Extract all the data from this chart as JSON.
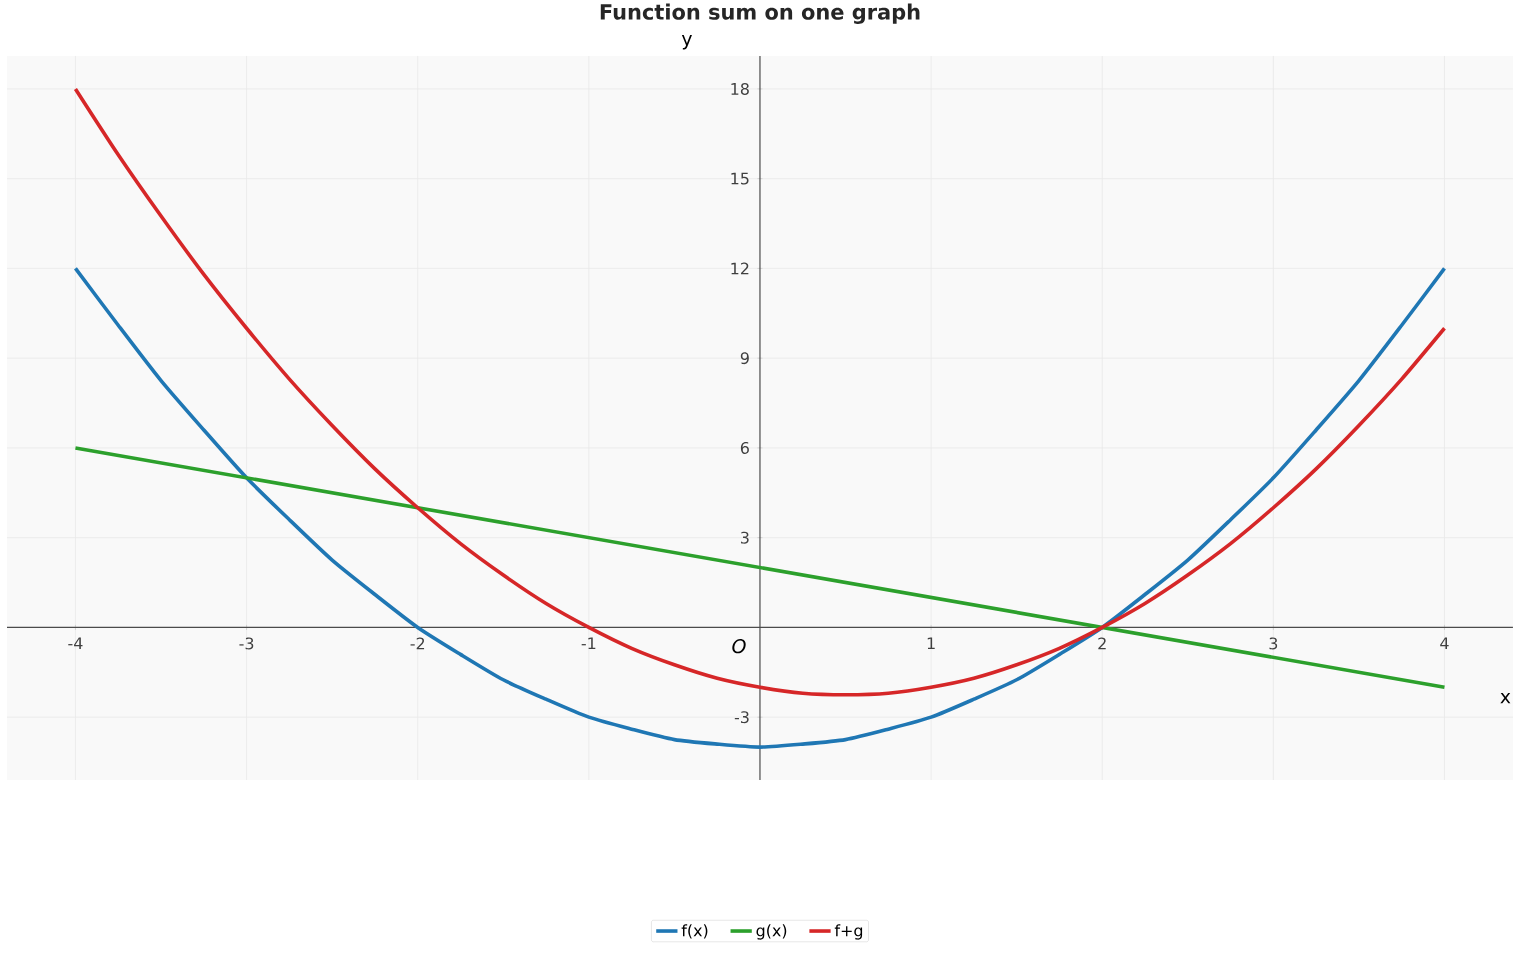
{
  "chart_data": {
    "type": "line",
    "title": "Function sum on one graph",
    "xlabel": "x",
    "ylabel": "y",
    "xlim": [
      -4.4,
      4.4
    ],
    "ylim": [
      -5.1,
      19.1
    ],
    "xticks": [
      -4,
      -3,
      -2,
      -1,
      1,
      2,
      3,
      4
    ],
    "yticks": [
      -3,
      3,
      6,
      9,
      12,
      15,
      18
    ],
    "grid": true,
    "legend": "bottom",
    "annotations": [
      "O"
    ],
    "series": [
      {
        "name": "f(x)",
        "color": "#1f77b4",
        "x": [
          -4,
          -3.75,
          -3.5,
          -3.25,
          -3,
          -2.75,
          -2.5,
          -2.25,
          -2,
          -1.75,
          -1.5,
          -1.25,
          -1,
          -0.75,
          -0.5,
          -0.25,
          0,
          0.25,
          0.5,
          0.75,
          1,
          1.25,
          1.5,
          1.75,
          2,
          2.25,
          2.5,
          2.75,
          3,
          3.25,
          3.5,
          3.75,
          4
        ],
        "values": [
          12,
          10.1,
          8.25,
          6.6,
          5,
          3.6,
          2.25,
          1.1,
          0,
          -0.9,
          -1.75,
          -2.4,
          -3,
          -3.4,
          -3.75,
          -3.9,
          -4,
          -3.9,
          -3.75,
          -3.4,
          -3,
          -2.4,
          -1.75,
          -0.9,
          0,
          1.1,
          2.25,
          3.6,
          5,
          6.6,
          8.25,
          10.1,
          12
        ]
      },
      {
        "name": "g(x)",
        "color": "#2ca02c",
        "x": [
          -4,
          4
        ],
        "values": [
          6,
          -2
        ]
      },
      {
        "name": "f+g",
        "color": "#d62728",
        "x": [
          -4,
          -3.75,
          -3.5,
          -3.25,
          -3,
          -2.75,
          -2.5,
          -2.25,
          -2,
          -1.75,
          -1.5,
          -1.25,
          -1,
          -0.75,
          -0.5,
          -0.25,
          0,
          0.25,
          0.5,
          0.75,
          1,
          1.25,
          1.5,
          1.75,
          2,
          2.25,
          2.5,
          2.75,
          3,
          3.25,
          3.5,
          3.75,
          4
        ],
        "values": [
          18,
          15.8,
          13.75,
          11.8,
          10,
          8.3,
          6.75,
          5.3,
          4,
          2.8,
          1.75,
          0.8,
          0,
          -0.7,
          -1.25,
          -1.7,
          -2,
          -2.2,
          -2.25,
          -2.2,
          -2,
          -1.7,
          -1.25,
          -0.7,
          0,
          0.8,
          1.75,
          2.8,
          4,
          5.3,
          6.75,
          8.3,
          10
        ]
      }
    ]
  }
}
